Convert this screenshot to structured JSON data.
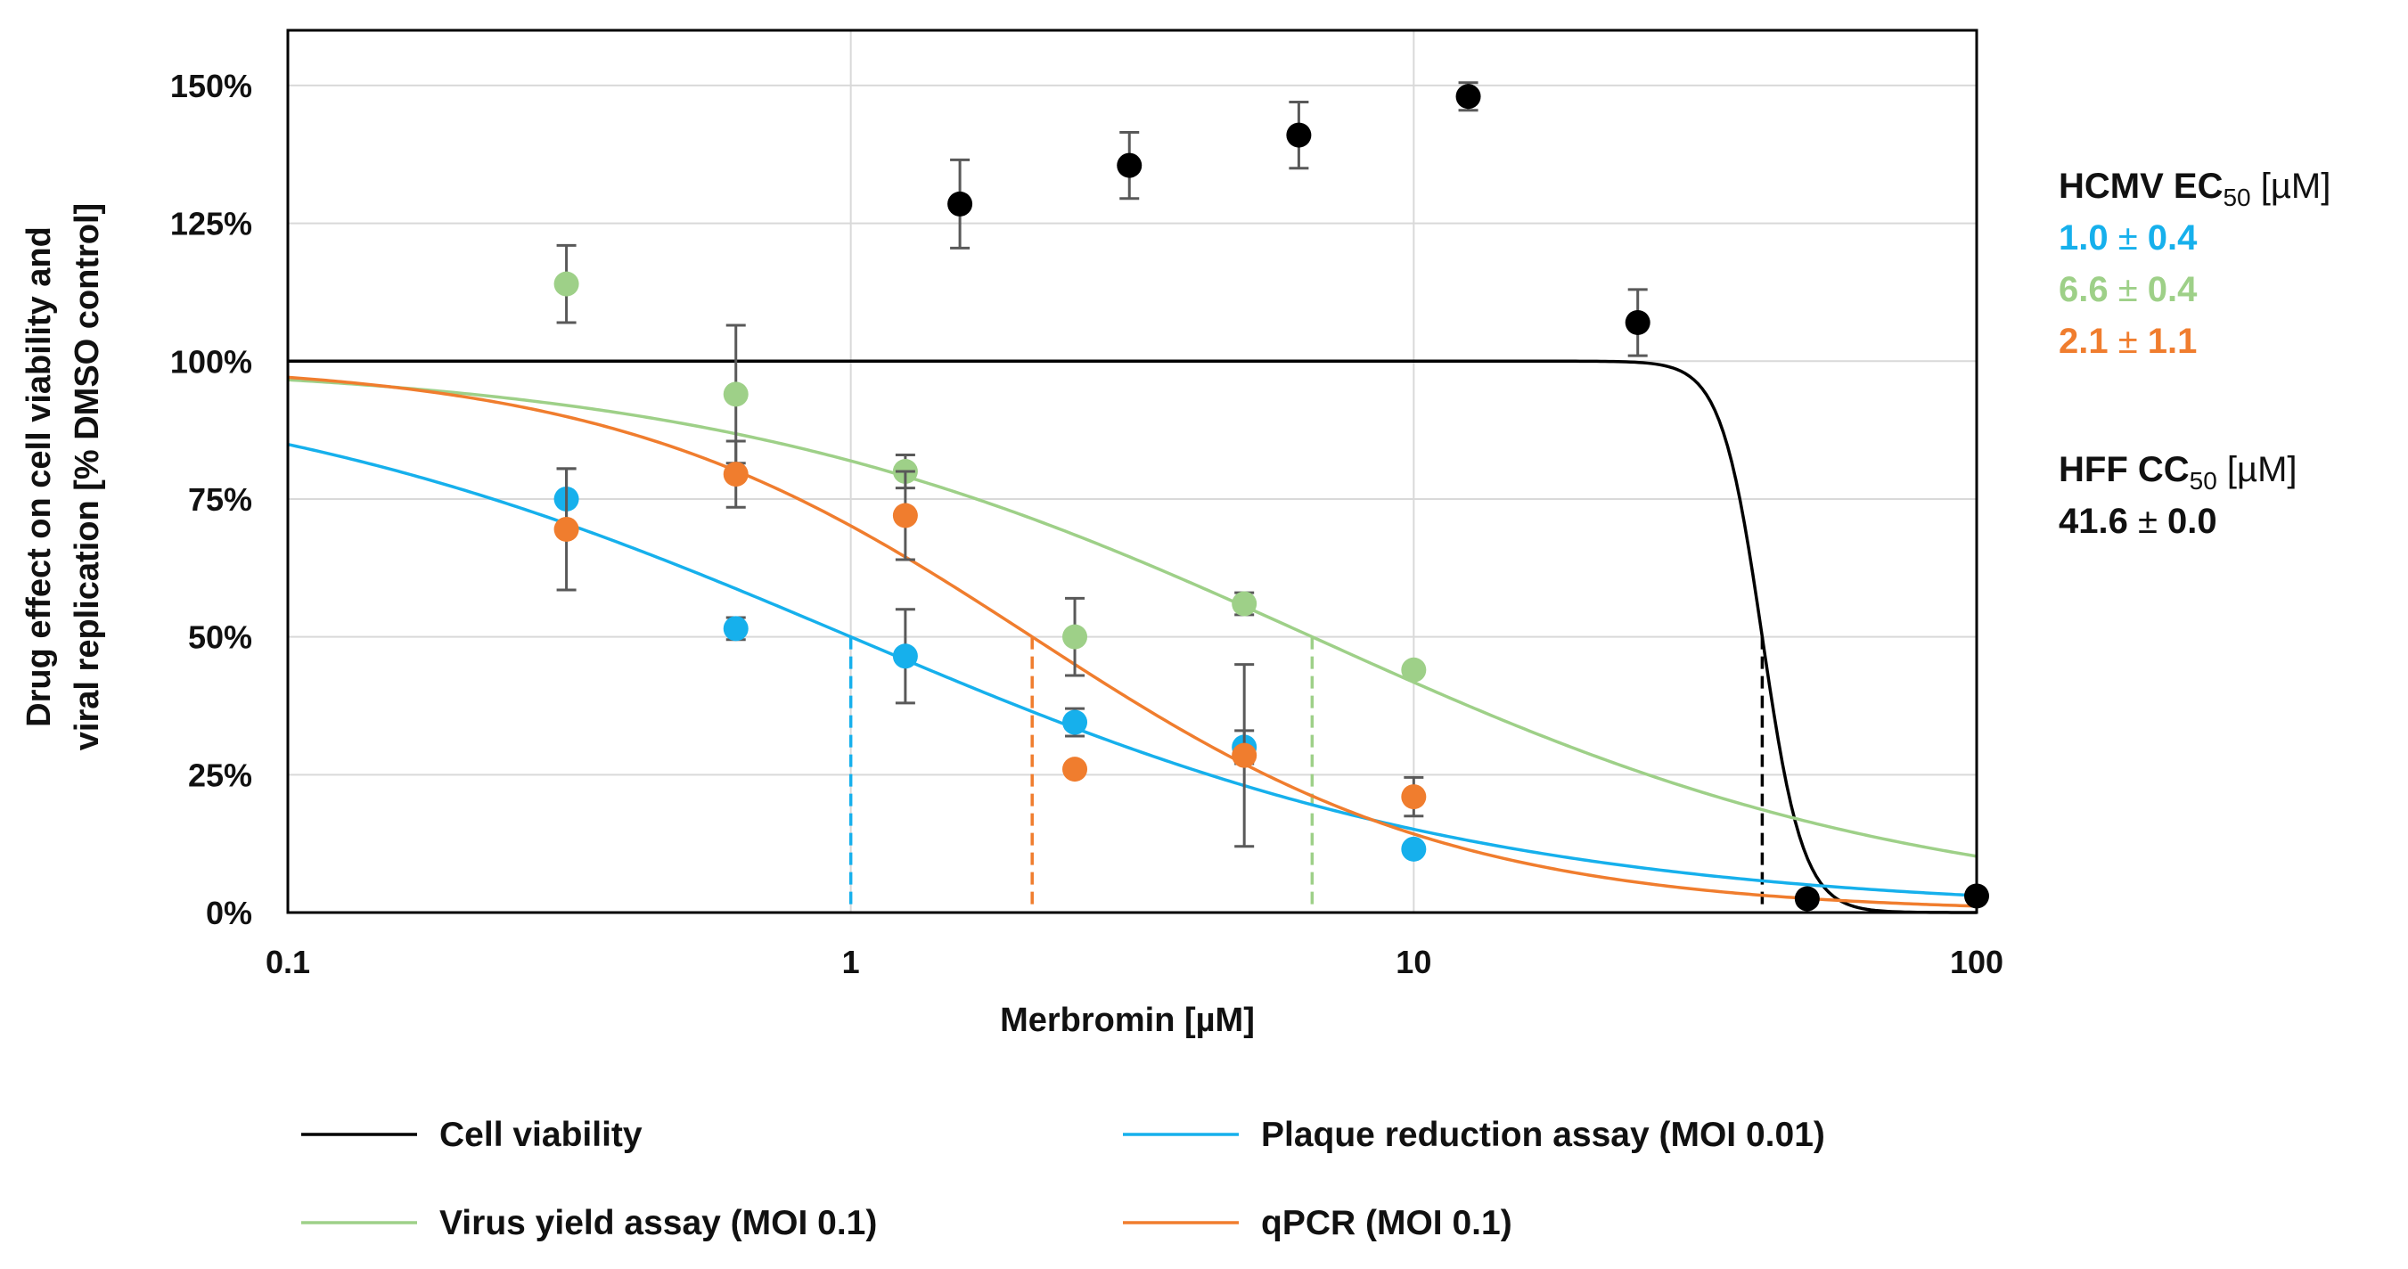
{
  "chart_data": {
    "type": "scatter",
    "xscale": "log",
    "xlim": [
      0.1,
      100
    ],
    "ylim": [
      0,
      1.6
    ],
    "grid": true,
    "xlabel": "Merbromin [µM]",
    "ylabel_line1": "Drug effect on cell viability and",
    "ylabel_line2": "viral replication [% DMSO control]",
    "x_ticks": [
      {
        "value": 0.1,
        "label": "0.1"
      },
      {
        "value": 1,
        "label": "1"
      },
      {
        "value": 10,
        "label": "10"
      },
      {
        "value": 100,
        "label": "100"
      }
    ],
    "y_ticks": [
      {
        "value": 0,
        "label": "0%"
      },
      {
        "value": 0.25,
        "label": "25%"
      },
      {
        "value": 0.5,
        "label": "50%"
      },
      {
        "value": 0.75,
        "label": "75%"
      },
      {
        "value": 1.0,
        "label": "100%"
      },
      {
        "value": 1.25,
        "label": "125%"
      },
      {
        "value": 1.5,
        "label": "150%"
      }
    ],
    "legend_placement": "bottom",
    "series": [
      {
        "name": "Cell viability",
        "color": "#000000",
        "fit": {
          "top": 1.0,
          "ec50": 41.6,
          "hill": 12
        },
        "marker_x": 41.6,
        "points": [
          {
            "x": 1.5625,
            "y": 1.285,
            "err": 0.08
          },
          {
            "x": 3.125,
            "y": 1.355,
            "err": 0.06
          },
          {
            "x": 6.25,
            "y": 1.41,
            "err": 0.06
          },
          {
            "x": 12.5,
            "y": 1.48,
            "err": 0.025
          },
          {
            "x": 25,
            "y": 1.07,
            "err": 0.06
          },
          {
            "x": 50,
            "y": 0.025,
            "err": 0.01
          },
          {
            "x": 100,
            "y": 0.03,
            "err": 0.01
          }
        ]
      },
      {
        "name": "Plaque reduction assay (MOI 0.01)",
        "color": "#16b0ec",
        "fit": {
          "top": 1.0,
          "ec50": 1.0,
          "hill": 0.75
        },
        "marker_x": 1.0,
        "points": [
          {
            "x": 0.3125,
            "y": 0.75,
            "err": 0.055
          },
          {
            "x": 0.625,
            "y": 0.515,
            "err": 0.02
          },
          {
            "x": 1.25,
            "y": 0.465,
            "err": 0.085
          },
          {
            "x": 2.5,
            "y": 0.345,
            "err": 0.025
          },
          {
            "x": 5,
            "y": 0.3,
            "err": 0.03
          },
          {
            "x": 10,
            "y": 0.115,
            "err": 0.01
          }
        ]
      },
      {
        "name": "Virus yield assay (MOI 0.1)",
        "color": "#9ed088",
        "fit": {
          "top": 1.0,
          "ec50": 6.6,
          "hill": 0.8
        },
        "marker_x": 6.6,
        "points": [
          {
            "x": 0.3125,
            "y": 1.14,
            "err": 0.07
          },
          {
            "x": 0.625,
            "y": 0.94,
            "err": 0.125
          },
          {
            "x": 1.25,
            "y": 0.8,
            "err": 0.03
          },
          {
            "x": 2.5,
            "y": 0.5,
            "err": 0.07
          },
          {
            "x": 5,
            "y": 0.56,
            "err": 0.02
          },
          {
            "x": 10,
            "y": 0.44,
            "err": 0.01
          }
        ]
      },
      {
        "name": "qPCR (MOI 0.1)",
        "color": "#f07d2e",
        "fit": {
          "top": 1.0,
          "ec50": 2.1,
          "hill": 1.15
        },
        "marker_x": 2.1,
        "points": [
          {
            "x": 0.3125,
            "y": 0.695,
            "err": 0.11
          },
          {
            "x": 0.625,
            "y": 0.795,
            "err": 0.06
          },
          {
            "x": 1.25,
            "y": 0.72,
            "err": 0.08
          },
          {
            "x": 2.5,
            "y": 0.26,
            "err": 0.01
          },
          {
            "x": 5,
            "y": 0.285,
            "err": 0.165
          },
          {
            "x": 10,
            "y": 0.21,
            "err": 0.035
          }
        ]
      }
    ]
  },
  "annotations": {
    "ec50_heading_main": "HCMV EC",
    "ec50_heading_sub": "50",
    "ec50_heading_unit": " [µM]",
    "ec50_values": [
      {
        "num": "1.0",
        "pm": " ± ",
        "err": "0.4",
        "color": "#16b0ec"
      },
      {
        "num": "6.6",
        "pm": " ± ",
        "err": "0.4",
        "color": "#9ed088"
      },
      {
        "num": "2.1",
        "pm": " ± ",
        "err": "1.1",
        "color": "#f07d2e"
      }
    ],
    "cc50_heading_main": "HFF CC",
    "cc50_heading_sub": "50",
    "cc50_heading_unit": " [µM]",
    "cc50_value": {
      "num": "41.6",
      "pm": " ± ",
      "err": "0.0",
      "color": "#111111"
    }
  }
}
